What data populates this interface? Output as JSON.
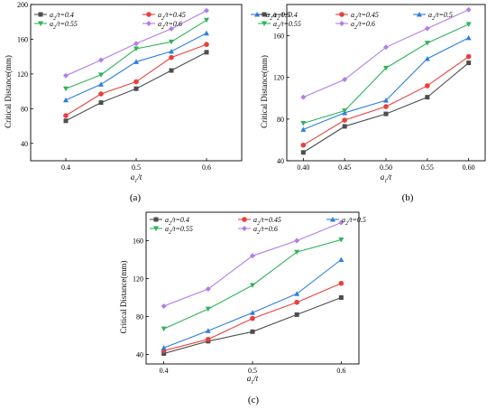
{
  "colors": {
    "a2_0.4": "#4d4d4d",
    "a2_0.45": "#e8403c",
    "a2_0.5": "#2f7de0",
    "a2_0.55": "#31b35a",
    "a2_0.6": "#b27fe6"
  },
  "chart_data": [
    {
      "panel": "(a)",
      "type": "line",
      "x": [
        0.4,
        0.45,
        0.5,
        0.55,
        0.6
      ],
      "x_tick_labels": [
        "0.4",
        "0.5",
        "0.6"
      ],
      "x_ticks": [
        0.4,
        0.5,
        0.6
      ],
      "xlim": [
        0.35,
        0.65
      ],
      "ylim": [
        20,
        200
      ],
      "y_ticks": [
        40,
        80,
        120,
        160,
        200
      ],
      "xlabel": "a1/t",
      "ylabel": "Critical Distance(mm)",
      "legend_placement": "top",
      "series": [
        {
          "name": "a2/t=0.4",
          "key": "a2_0.4",
          "marker": "square",
          "values": [
            66,
            87,
            103,
            124,
            145
          ]
        },
        {
          "name": "a2/t=0.45",
          "key": "a2_0.45",
          "marker": "circle",
          "values": [
            72,
            97,
            111,
            139,
            154
          ]
        },
        {
          "name": "a2/t=0.5",
          "key": "a2_0.5",
          "marker": "triangle",
          "values": [
            90,
            108,
            134,
            146,
            167
          ]
        },
        {
          "name": "a2/t=0.55",
          "key": "a2_0.55",
          "marker": "tri-down",
          "values": [
            103,
            119,
            149,
            157,
            182
          ]
        },
        {
          "name": "a2/t=0.6",
          "key": "a2_0.6",
          "marker": "diamond",
          "values": [
            118,
            136,
            155,
            172,
            193
          ]
        }
      ]
    },
    {
      "panel": "(b)",
      "type": "line",
      "x": [
        0.4,
        0.45,
        0.5,
        0.55,
        0.6
      ],
      "x_tick_labels": [
        "0.40",
        "0.45",
        "0.50",
        "0.55",
        "0.60"
      ],
      "x_ticks": [
        0.4,
        0.45,
        0.5,
        0.55,
        0.6
      ],
      "xlim": [
        0.38,
        0.62
      ],
      "ylim": [
        40,
        190
      ],
      "y_ticks": [
        40,
        80,
        120,
        160
      ],
      "xlabel": "a1/t",
      "ylabel": "Critical Distance(mm)",
      "legend_placement": "top",
      "series": [
        {
          "name": "a2/t=0.4",
          "key": "a2_0.4",
          "marker": "square",
          "values": [
            48,
            73,
            85,
            101,
            134
          ]
        },
        {
          "name": "a2/t=0.45",
          "key": "a2_0.45",
          "marker": "circle",
          "values": [
            55,
            79,
            92,
            112,
            140
          ]
        },
        {
          "name": "a2/t=0.5",
          "key": "a2_0.5",
          "marker": "triangle",
          "values": [
            70,
            86,
            98,
            138,
            158
          ]
        },
        {
          "name": "a2/t=0.55",
          "key": "a2_0.55",
          "marker": "tri-down",
          "values": [
            76,
            88,
            129,
            153,
            171
          ]
        },
        {
          "name": "a2/t=0.6",
          "key": "a2_0.6",
          "marker": "diamond",
          "values": [
            101,
            118,
            149,
            167,
            185
          ]
        }
      ]
    },
    {
      "panel": "(c)",
      "type": "line",
      "x": [
        0.4,
        0.45,
        0.5,
        0.55,
        0.6
      ],
      "x_tick_labels": [
        "0.4",
        "0.5",
        "0.6"
      ],
      "x_ticks": [
        0.4,
        0.5,
        0.6
      ],
      "xlim": [
        0.38,
        0.62
      ],
      "ylim": [
        30,
        190
      ],
      "y_ticks": [
        40,
        80,
        120,
        160
      ],
      "xlabel": "a1/t",
      "ylabel": "Critical Distance(mm)",
      "legend_placement": "top",
      "series": [
        {
          "name": "a2/t=0.4",
          "key": "a2_0.4",
          "marker": "square",
          "values": [
            41,
            54,
            64,
            82,
            100
          ]
        },
        {
          "name": "a2/t=0.45",
          "key": "a2_0.45",
          "marker": "circle",
          "values": [
            44,
            56,
            78,
            95,
            115
          ]
        },
        {
          "name": "a2/t=0.5",
          "key": "a2_0.5",
          "marker": "triangle",
          "values": [
            47,
            65,
            84,
            104,
            140
          ]
        },
        {
          "name": "a2/t=0.55",
          "key": "a2_0.55",
          "marker": "tri-down",
          "values": [
            67,
            88,
            113,
            148,
            161
          ]
        },
        {
          "name": "a2/t=0.6",
          "key": "a2_0.6",
          "marker": "diamond",
          "values": [
            91,
            109,
            144,
            160,
            179
          ]
        }
      ]
    }
  ]
}
